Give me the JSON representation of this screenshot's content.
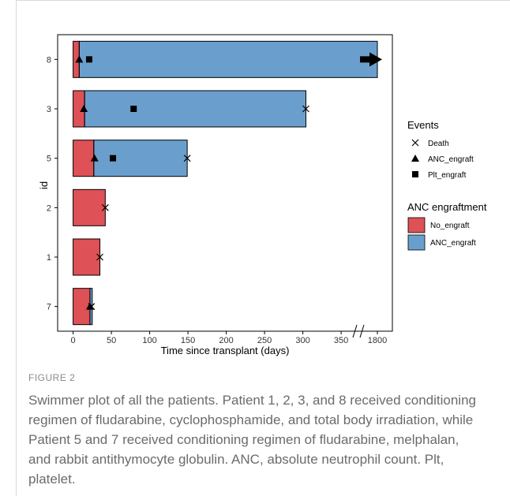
{
  "figure": {
    "label": "FIGURE 2",
    "caption": "Swimmer plot of all the patients. Patient 1, 2, 3, and 8 received conditioning regimen of fludarabine, cyclophosphamide, and total body irradiation, while Patient 5 and 7 received conditioning regimen of fludarabine, melphalan, and rabbit antithymocyte globulin. ANC, absolute neutrophil count. Plt, platelet."
  },
  "chart_data": {
    "type": "bar",
    "orientation": "horizontal",
    "xlabel": "Time since transplant (days)",
    "ylabel": "id",
    "xlim": [
      0,
      380
    ],
    "x_ticks": [
      "0",
      "50",
      "100",
      "150",
      "200",
      "250",
      "300",
      "350",
      "1800"
    ],
    "x_axis_break": "between 350 and 1800",
    "categories": [
      "8",
      "3",
      "5",
      "2",
      "1",
      "7"
    ],
    "series": [
      {
        "name": "No_engraft",
        "color": "#dd5157",
        "values": [
          8,
          15,
          27,
          42,
          35,
          22
        ]
      },
      {
        "name": "ANC_engraft",
        "color": "#6a9fcd",
        "values": [
          1800,
          304,
          149,
          0,
          0,
          3
        ]
      }
    ],
    "totals": [
      1800,
      304,
      149,
      42,
      35,
      25
    ],
    "ongoing": [
      "8"
    ],
    "events": [
      {
        "id": "8",
        "event": "ANC_engraft",
        "time": 8
      },
      {
        "id": "8",
        "event": "Plt_engraft",
        "time": 21
      },
      {
        "id": "3",
        "event": "ANC_engraft",
        "time": 14
      },
      {
        "id": "3",
        "event": "Plt_engraft",
        "time": 79
      },
      {
        "id": "3",
        "event": "Death",
        "time": 304
      },
      {
        "id": "5",
        "event": "ANC_engraft",
        "time": 28
      },
      {
        "id": "5",
        "event": "Plt_engraft",
        "time": 52
      },
      {
        "id": "5",
        "event": "Death",
        "time": 149
      },
      {
        "id": "2",
        "event": "Death",
        "time": 42
      },
      {
        "id": "1",
        "event": "Death",
        "time": 35
      },
      {
        "id": "7",
        "event": "ANC_engraft",
        "time": 22
      },
      {
        "id": "7",
        "event": "Death",
        "time": 24
      }
    ],
    "legends": [
      {
        "title": "Events",
        "items": [
          {
            "label": "Death",
            "symbol": "cross"
          },
          {
            "label": "ANC_engraft",
            "symbol": "triangle"
          },
          {
            "label": "Plt_engraft",
            "symbol": "square"
          }
        ]
      },
      {
        "title": "ANC engraftment",
        "items": [
          {
            "label": "No_engraft",
            "color": "#dd5157"
          },
          {
            "label": "ANC_engraft",
            "color": "#6a9fcd"
          }
        ]
      }
    ],
    "legend_position": "right",
    "grid": false
  }
}
